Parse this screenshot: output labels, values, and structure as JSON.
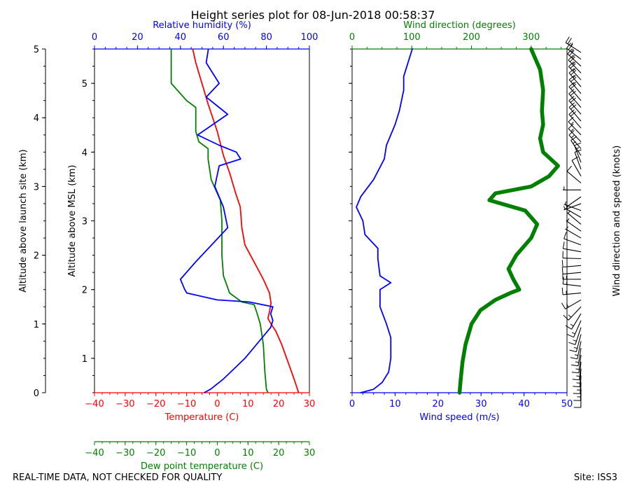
{
  "title": "Height series plot for 08-Jun-2018 00:58:37",
  "footer_left": "REAL-TIME DATA, NOT CHECKED FOR QUALITY",
  "footer_right": "Site: ISS3",
  "colors": {
    "temperature": "#ff0000",
    "dewpoint": "#008000",
    "rh": "#0000ff",
    "wind_speed": "#0000ff",
    "wind_dir": "#008000",
    "axis": "#000000"
  },
  "chart_data": [
    {
      "type": "line",
      "panel": "thermo",
      "outer_ylabel": "Altitude above launch site (km)",
      "ylabel": "Altitude above MSL (km)",
      "outer_yticks": [
        "0",
        "1",
        "2",
        "3",
        "4",
        "5"
      ],
      "outer_ylim": [
        0,
        5
      ],
      "ylim": [
        0.5,
        5.5
      ],
      "yticks": [
        "1",
        "2",
        "3",
        "4",
        "5"
      ],
      "axes": {
        "temperature": {
          "label": "Temperature (C)",
          "range": [
            -40,
            30
          ],
          "ticks": [
            "−40",
            "−30",
            "−20",
            "−10",
            "0",
            "10",
            "20",
            "30"
          ]
        },
        "dewpoint": {
          "label": "Dew point temperature (C)",
          "range": [
            -40,
            30
          ],
          "ticks": [
            "−40",
            "−30",
            "−20",
            "−10",
            "0",
            "10",
            "20",
            "30"
          ]
        },
        "rh": {
          "label": "Relative humidity (%)",
          "range": [
            0,
            100
          ],
          "ticks": [
            "0",
            "20",
            "40",
            "60",
            "80",
            "100"
          ]
        }
      },
      "series": [
        {
          "name": "Temperature",
          "axis": "temperature",
          "points": [
            [
              26.5,
              0.5
            ],
            [
              25,
              0.7
            ],
            [
              23,
              0.95
            ],
            [
              21,
              1.2
            ],
            [
              19,
              1.4
            ],
            [
              17.5,
              1.5
            ],
            [
              16.5,
              1.58
            ],
            [
              17,
              1.68
            ],
            [
              17.5,
              1.8
            ],
            [
              17,
              1.95
            ],
            [
              15,
              2.15
            ],
            [
              12,
              2.4
            ],
            [
              9,
              2.65
            ],
            [
              8,
              2.9
            ],
            [
              7.5,
              3.2
            ],
            [
              6,
              3.4
            ],
            [
              4,
              3.7
            ],
            [
              2,
              3.95
            ],
            [
              0,
              4.3
            ],
            [
              -3,
              4.7
            ],
            [
              -5,
              5.0
            ],
            [
              -7,
              5.3
            ],
            [
              -8,
              5.5
            ]
          ]
        },
        {
          "name": "Dew point",
          "axis": "dewpoint",
          "points": [
            [
              16.5,
              0.5
            ],
            [
              16,
              0.55
            ],
            [
              15.5,
              0.8
            ],
            [
              15,
              1.2
            ],
            [
              14,
              1.5
            ],
            [
              13,
              1.65
            ],
            [
              12,
              1.78
            ],
            [
              8,
              1.82
            ],
            [
              4,
              1.95
            ],
            [
              2,
              2.2
            ],
            [
              1.5,
              2.5
            ],
            [
              1.5,
              3.0
            ],
            [
              1,
              3.3
            ],
            [
              -2,
              3.6
            ],
            [
              -3,
              3.9
            ],
            [
              -3,
              4.05
            ],
            [
              -6,
              4.15
            ],
            [
              -7,
              4.3
            ],
            [
              -7,
              4.65
            ],
            [
              -10,
              4.75
            ],
            [
              -14,
              4.95
            ],
            [
              -15,
              5.0
            ],
            [
              -15,
              5.4
            ],
            [
              -15,
              5.5
            ]
          ]
        },
        {
          "name": "Relative humidity",
          "axis": "rh",
          "points": [
            [
              51,
              0.5
            ],
            [
              54,
              0.55
            ],
            [
              60,
              0.7
            ],
            [
              65,
              0.85
            ],
            [
              70,
              1.0
            ],
            [
              74,
              1.15
            ],
            [
              78,
              1.3
            ],
            [
              82,
              1.45
            ],
            [
              83,
              1.55
            ],
            [
              82,
              1.65
            ],
            [
              83,
              1.75
            ],
            [
              72,
              1.82
            ],
            [
              57,
              1.85
            ],
            [
              43,
              1.95
            ],
            [
              42,
              2.0
            ],
            [
              40,
              2.15
            ],
            [
              47,
              2.4
            ],
            [
              56,
              2.7
            ],
            [
              62,
              2.9
            ],
            [
              60,
              3.2
            ],
            [
              56,
              3.5
            ],
            [
              58,
              3.8
            ],
            [
              68,
              3.9
            ],
            [
              66,
              4.0
            ],
            [
              58,
              4.1
            ],
            [
              48,
              4.25
            ],
            [
              55,
              4.4
            ],
            [
              62,
              4.55
            ],
            [
              58,
              4.65
            ],
            [
              52,
              4.8
            ],
            [
              58,
              5.0
            ],
            [
              52,
              5.3
            ],
            [
              53,
              5.5
            ]
          ]
        }
      ]
    },
    {
      "type": "line",
      "panel": "wind",
      "ylabel_right": "Wind direction and speed (knots)",
      "ylim": [
        0.5,
        5.5
      ],
      "axes": {
        "wind_speed": {
          "label": "Wind speed (m/s)",
          "range": [
            0,
            50
          ],
          "ticks": [
            "0",
            "10",
            "20",
            "30",
            "40",
            "50"
          ]
        },
        "wind_dir": {
          "label": "Wind direction (degrees)",
          "range": [
            0,
            360
          ],
          "ticks": [
            "0",
            "100",
            "200",
            "300"
          ]
        }
      },
      "series": [
        {
          "name": "Wind speed",
          "axis": "wind_speed",
          "points": [
            [
              2,
              0.5
            ],
            [
              5,
              0.55
            ],
            [
              7,
              0.65
            ],
            [
              8.5,
              0.8
            ],
            [
              9,
              1.0
            ],
            [
              9,
              1.3
            ],
            [
              8,
              1.5
            ],
            [
              6.5,
              1.75
            ],
            [
              6.5,
              2.0
            ],
            [
              9,
              2.1
            ],
            [
              6.5,
              2.2
            ],
            [
              6,
              2.45
            ],
            [
              6,
              2.6
            ],
            [
              3,
              2.8
            ],
            [
              2.5,
              3.0
            ],
            [
              1,
              3.2
            ],
            [
              2,
              3.35
            ],
            [
              5,
              3.6
            ],
            [
              7.5,
              3.9
            ],
            [
              8,
              4.1
            ],
            [
              10,
              4.4
            ],
            [
              11,
              4.6
            ],
            [
              12,
              4.9
            ],
            [
              12,
              5.1
            ],
            [
              13.5,
              5.4
            ],
            [
              14,
              5.5
            ]
          ]
        },
        {
          "name": "Wind direction",
          "axis": "wind_dir",
          "points": [
            [
              180,
              0.5
            ],
            [
              182,
              0.7
            ],
            [
              185,
              0.95
            ],
            [
              190,
              1.2
            ],
            [
              200,
              1.5
            ],
            [
              215,
              1.7
            ],
            [
              240,
              1.85
            ],
            [
              265,
              1.95
            ],
            [
              280,
              2.0
            ],
            [
              270,
              2.15
            ],
            [
              262,
              2.3
            ],
            [
              275,
              2.5
            ],
            [
              300,
              2.75
            ],
            [
              310,
              2.95
            ],
            [
              290,
              3.15
            ],
            [
              230,
              3.3
            ],
            [
              240,
              3.4
            ],
            [
              300,
              3.5
            ],
            [
              330,
              3.65
            ],
            [
              345,
              3.8
            ],
            [
              320,
              4.0
            ],
            [
              315,
              4.2
            ],
            [
              320,
              4.4
            ],
            [
              318,
              4.6
            ],
            [
              320,
              4.9
            ],
            [
              315,
              5.2
            ],
            [
              300,
              5.5
            ]
          ]
        }
      ]
    }
  ]
}
